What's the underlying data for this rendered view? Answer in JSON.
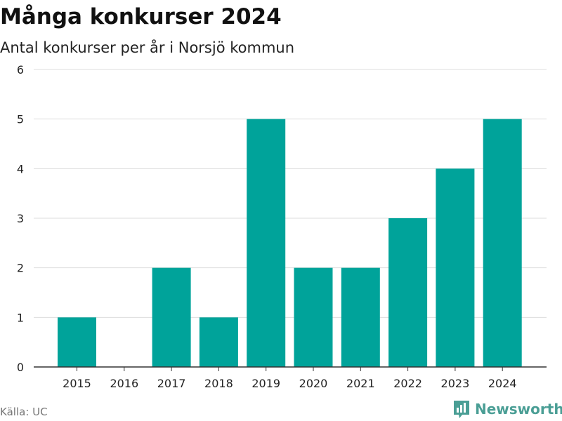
{
  "chart_data": {
    "type": "bar",
    "title": "Många konkurser 2024",
    "subtitle": "Antal konkurser per år i Norsjö kommun",
    "categories": [
      "2015",
      "2016",
      "2017",
      "2018",
      "2019",
      "2020",
      "2021",
      "2022",
      "2023",
      "2024"
    ],
    "values": [
      1,
      0,
      2,
      1,
      5,
      2,
      2,
      3,
      4,
      5
    ],
    "ylim": [
      0,
      6
    ],
    "yticks": [
      0,
      1,
      2,
      3,
      4,
      5,
      6
    ],
    "xlabel": "",
    "ylabel": "",
    "grid": true,
    "bar_color": "#00a39a"
  },
  "source": "Källa: UC",
  "brand": {
    "name": "Newsworthy",
    "logo_icon": "bar-chart-flag-icon",
    "color": "#4a9e95"
  }
}
